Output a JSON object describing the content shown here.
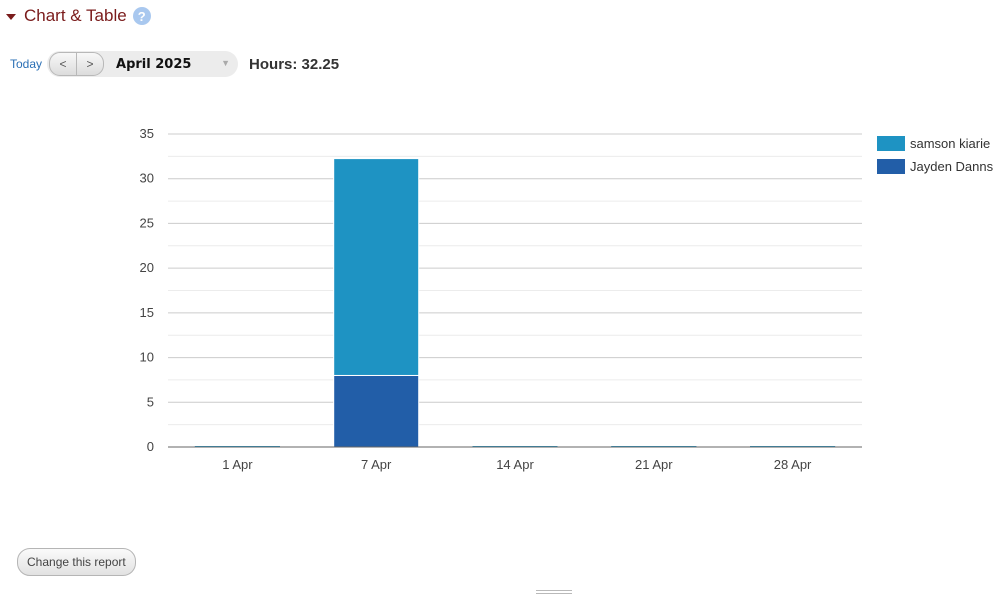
{
  "section": {
    "title": "Chart & Table",
    "help_glyph": "?"
  },
  "toolbar": {
    "today_label": "Today",
    "prev_label": "<",
    "next_label": ">",
    "period_label": "April 2025",
    "dropdown_glyph": "▼",
    "hours_label": "Hours: 32.25"
  },
  "colors": {
    "samson": "#1e93c3",
    "jayden": "#225ea8",
    "header": "#7a1b1b",
    "link": "#2a6fb5"
  },
  "chart_data": {
    "type": "bar",
    "stacked": true,
    "categories": [
      "1 Apr",
      "7 Apr",
      "14 Apr",
      "21 Apr",
      "28 Apr"
    ],
    "series": [
      {
        "name": "Jayden Danns",
        "color": "#225ea8",
        "values": [
          0,
          8,
          0,
          0,
          0
        ]
      },
      {
        "name": "samson kiarie",
        "color": "#1e93c3",
        "values": [
          0,
          24.25,
          0,
          0,
          0
        ]
      }
    ],
    "ylim": [
      0,
      35
    ],
    "yticks": [
      0,
      5,
      10,
      15,
      20,
      25,
      30,
      35
    ],
    "grid": true,
    "legend_position": "right",
    "xlabel": "",
    "ylabel": ""
  },
  "legend": [
    {
      "label": "samson kiarie",
      "color": "#1e93c3"
    },
    {
      "label": "Jayden Danns",
      "color": "#225ea8"
    }
  ],
  "footer": {
    "change_report_label": "Change this report"
  }
}
